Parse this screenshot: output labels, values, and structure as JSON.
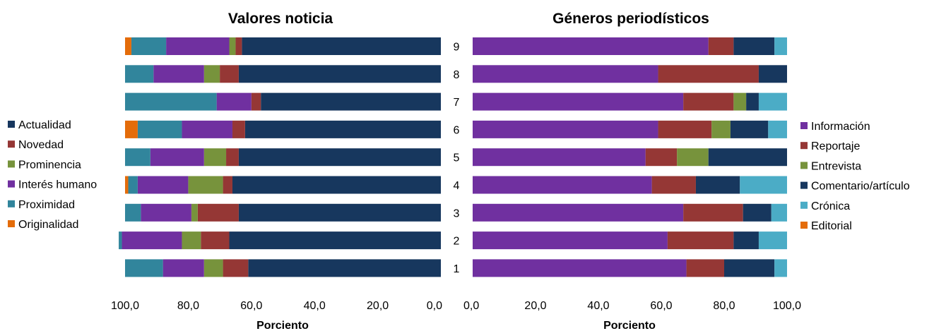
{
  "chart_data": [
    {
      "type": "bar",
      "orientation": "horizontal-stacked",
      "title": "Valores noticia",
      "xlabel": "Porciento",
      "xlim": [
        0,
        100
      ],
      "x_reversed": true,
      "x_ticks": [
        "100,0",
        "80,0",
        "60,0",
        "40,0",
        "20,0",
        "0,0"
      ],
      "categories": [
        "9",
        "8",
        "7",
        "6",
        "5",
        "4",
        "3",
        "2",
        "1"
      ],
      "legend_position": "left",
      "series": [
        {
          "name": "Actualidad",
          "color": "#17375e",
          "values": [
            63,
            64,
            57,
            62,
            64,
            66,
            64,
            67,
            61
          ]
        },
        {
          "name": "Novedad",
          "color": "#953735",
          "values": [
            2,
            6,
            3,
            4,
            4,
            3,
            13,
            9,
            8
          ]
        },
        {
          "name": "Prominencia",
          "color": "#77933c",
          "values": [
            2,
            5,
            0,
            0,
            7,
            11,
            2,
            6,
            6
          ]
        },
        {
          "name": "Interés humano",
          "color": "#7030a0",
          "values": [
            20,
            16,
            11,
            16,
            17,
            16,
            16,
            19,
            13
          ]
        },
        {
          "name": "Proximidad",
          "color": "#31859c",
          "values": [
            11,
            9,
            29,
            14,
            8,
            3,
            5,
            1,
            12
          ]
        },
        {
          "name": "Originalidad",
          "color": "#e46c0a",
          "values": [
            2,
            0,
            0,
            4,
            0,
            1,
            0,
            0,
            0
          ]
        }
      ]
    },
    {
      "type": "bar",
      "orientation": "horizontal-stacked",
      "title": "Géneros periodísticos",
      "xlabel": "Porciento",
      "xlim": [
        0,
        100
      ],
      "x_reversed": false,
      "x_ticks": [
        "0,0",
        "20,0",
        "40,0",
        "60,0",
        "80,0",
        "100,0"
      ],
      "categories": [
        "9",
        "8",
        "7",
        "6",
        "5",
        "4",
        "3",
        "2",
        "1"
      ],
      "legend_position": "right",
      "series": [
        {
          "name": "Información",
          "color": "#7030a0",
          "values": [
            75,
            59,
            67,
            59,
            55,
            57,
            67,
            62,
            68
          ]
        },
        {
          "name": "Reportaje",
          "color": "#953735",
          "values": [
            8,
            32,
            16,
            17,
            10,
            14,
            19,
            21,
            12
          ]
        },
        {
          "name": "Entrevista",
          "color": "#77933c",
          "values": [
            0,
            0,
            4,
            6,
            10,
            0,
            0,
            0,
            0
          ]
        },
        {
          "name": "Comentario/artículo",
          "color": "#17375e",
          "values": [
            13,
            9,
            4,
            12,
            25,
            14,
            9,
            8,
            16
          ]
        },
        {
          "name": "Crónica",
          "color": "#4bacc6",
          "values": [
            4,
            0,
            9,
            6,
            0,
            15,
            5,
            9,
            4
          ]
        },
        {
          "name": "Editorial",
          "color": "#e46c0a",
          "values": [
            0,
            0,
            0,
            0,
            0,
            0,
            0,
            0,
            0
          ]
        }
      ]
    }
  ]
}
